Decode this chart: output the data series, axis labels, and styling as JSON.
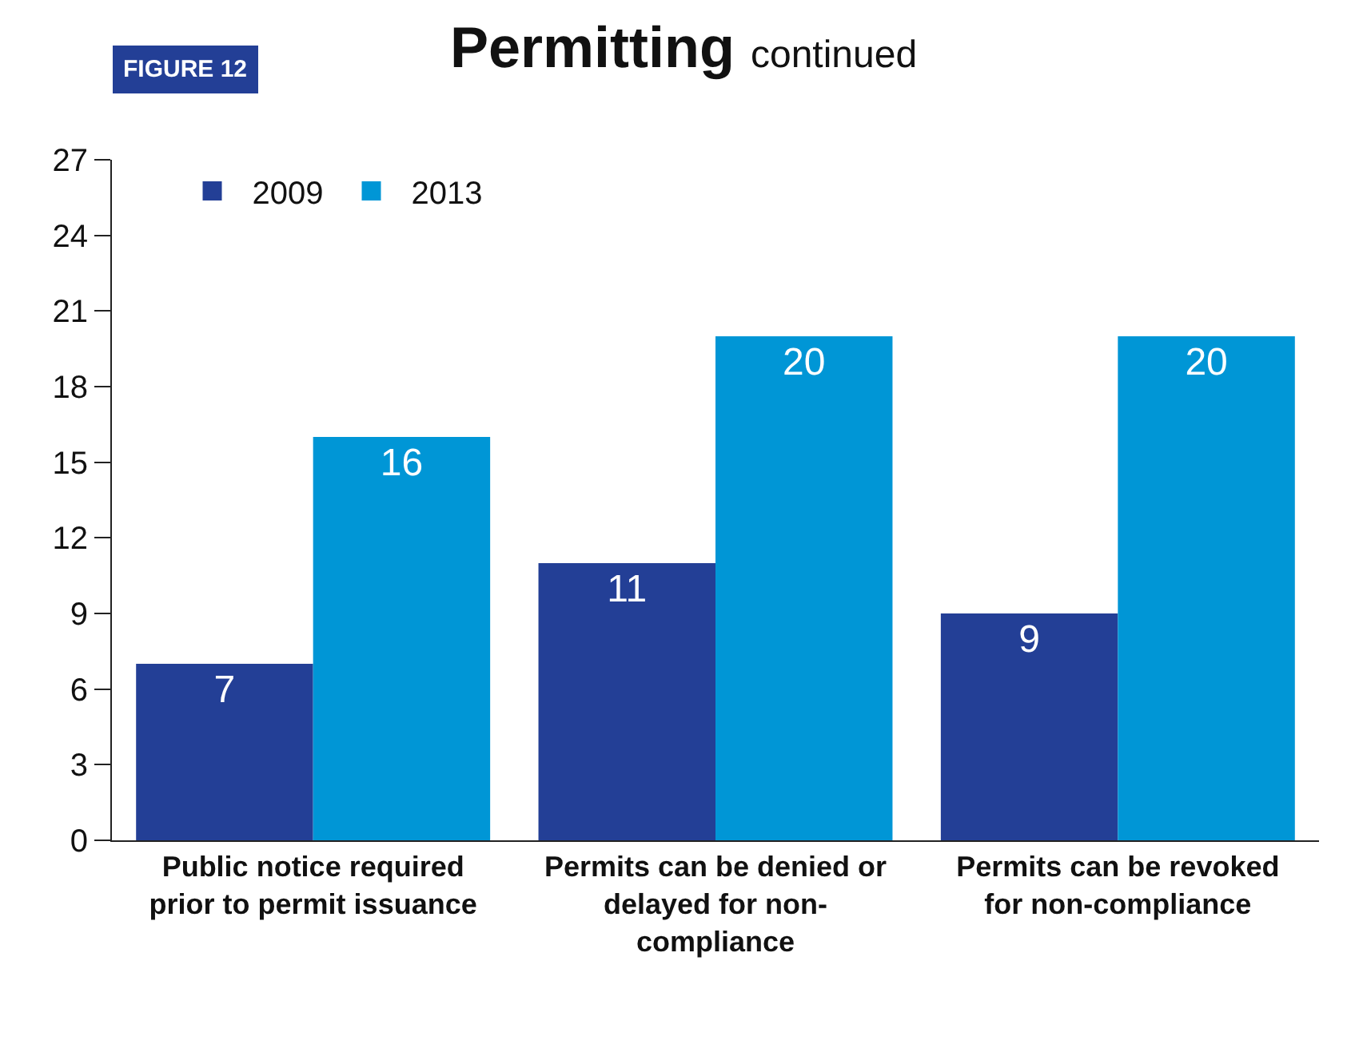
{
  "chart_data": {
    "type": "bar",
    "title": "Permitting",
    "subtitle": "continued",
    "annotations": [
      "FIGURE 12"
    ],
    "categories": [
      "Public notice required prior to permit issuance",
      "Permits can be denied or delayed for non-compliance",
      "Permits can be revoked for non-compliance"
    ],
    "series": [
      {
        "name": "2009",
        "color": "#233f96",
        "values": [
          7,
          11,
          9
        ]
      },
      {
        "name": "2013",
        "color": "#0096d6",
        "values": [
          16,
          20,
          20
        ]
      }
    ],
    "ylim": [
      0,
      27
    ],
    "yticks": [
      0,
      3,
      6,
      9,
      12,
      15,
      18,
      21,
      24,
      27
    ],
    "data_labels": true,
    "legend": "top left"
  }
}
